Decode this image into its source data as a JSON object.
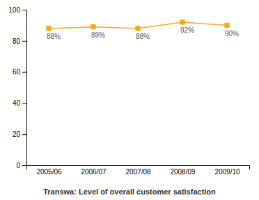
{
  "chart_data": {
    "type": "line",
    "title": "Transwa: Level of overall customer satisfaction",
    "categories": [
      "2005/06",
      "2006/07",
      "2007/08",
      "2008/09",
      "2009/10"
    ],
    "values": [
      88,
      89,
      88,
      92,
      90
    ],
    "value_labels": [
      "88%",
      "89%",
      "88%",
      "92%",
      "90%"
    ],
    "color": "#F5A623",
    "marker": "square",
    "ylim": [
      0,
      100
    ],
    "yticks": [
      0,
      20,
      40,
      60,
      80,
      100
    ],
    "grid": false,
    "data_labels": true
  }
}
